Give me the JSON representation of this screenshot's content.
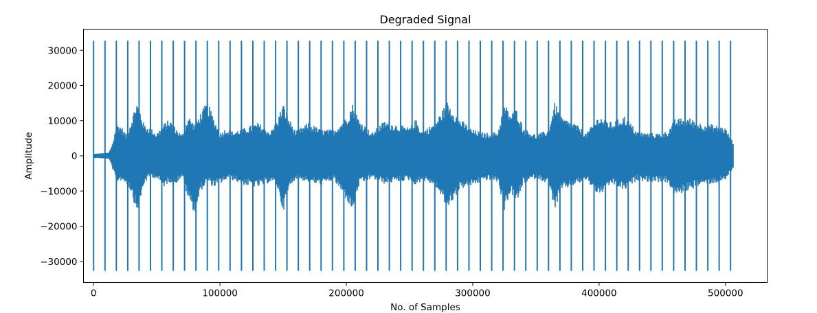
{
  "chart_data": {
    "type": "line",
    "title": "Degraded Signal",
    "xlabel": "No. of Samples",
    "ylabel": "Amplitude",
    "xlim": [
      -8000,
      533000
    ],
    "ylim": [
      -36000,
      36000
    ],
    "x_ticks": [
      0,
      100000,
      200000,
      300000,
      400000,
      500000
    ],
    "y_ticks": [
      -30000,
      -20000,
      -10000,
      0,
      10000,
      20000,
      30000
    ],
    "x_tick_labels": [
      "0",
      "100000",
      "200000",
      "300000",
      "400000",
      "500000"
    ],
    "y_tick_labels": [
      "−30000",
      "−20000",
      "−10000",
      "0",
      "10000",
      "20000",
      "30000"
    ],
    "series": [
      {
        "color": "#1f77b4",
        "sample_range": [
          0,
          506000
        ],
        "impulse_amplitude": 32700,
        "impulse_positions": [
          0,
          9000,
          18000,
          27000,
          36000,
          45000,
          54000,
          63000,
          72000,
          81000,
          90000,
          99000,
          108000,
          117000,
          126000,
          135000,
          144000,
          153000,
          162000,
          171000,
          180000,
          189000,
          198000,
          207000,
          216000,
          225000,
          234000,
          243000,
          252000,
          261000,
          270000,
          279000,
          288000,
          297000,
          306000,
          315000,
          324000,
          333000,
          342000,
          351000,
          360000,
          369000,
          378000,
          387000,
          396000,
          405000,
          414000,
          423000,
          432000,
          441000,
          450000,
          459000,
          468000,
          477000,
          486000,
          495000,
          504000
        ],
        "envelope": {
          "x": [
            0,
            12000,
            14000,
            16000,
            18000,
            22000,
            26000,
            30000,
            34000,
            36000,
            40000,
            45000,
            50000,
            55000,
            60000,
            65000,
            70000,
            75000,
            80000,
            85000,
            90000,
            95000,
            100000,
            105000,
            110000,
            120000,
            130000,
            140000,
            145000,
            150000,
            155000,
            160000,
            170000,
            180000,
            190000,
            200000,
            205000,
            210000,
            220000,
            230000,
            240000,
            250000,
            255000,
            260000,
            270000,
            280000,
            290000,
            300000,
            310000,
            320000,
            325000,
            330000,
            335000,
            340000,
            350000,
            360000,
            365000,
            370000,
            380000,
            390000,
            400000,
            410000,
            420000,
            430000,
            440000,
            450000,
            455000,
            460000,
            470000,
            480000,
            490000,
            500000,
            506000
          ],
          "upper": [
            600,
            900,
            2500,
            5000,
            9500,
            8500,
            6000,
            10500,
            15500,
            14000,
            9000,
            8000,
            6500,
            9000,
            10500,
            8000,
            6000,
            11500,
            9000,
            12500,
            15500,
            11000,
            6500,
            8000,
            7000,
            8000,
            9500,
            7000,
            10000,
            15000,
            10500,
            7000,
            9500,
            7500,
            7500,
            11000,
            15000,
            10500,
            6500,
            10000,
            9000,
            8000,
            10500,
            7000,
            9500,
            15500,
            10500,
            7500,
            6500,
            7000,
            15000,
            12000,
            13500,
            8000,
            6000,
            7500,
            15500,
            11000,
            9500,
            6500,
            11500,
            9500,
            11500,
            7000,
            6500,
            6500,
            7500,
            10500,
            11000,
            9500,
            9000,
            8000,
            4000
          ],
          "lower": [
            -600,
            -900,
            -2500,
            -5000,
            -7500,
            -7000,
            -8000,
            -10500,
            -16000,
            -14500,
            -8000,
            -6000,
            -6500,
            -9000,
            -7500,
            -8000,
            -6000,
            -12500,
            -16500,
            -10000,
            -7500,
            -9000,
            -8000,
            -7000,
            -7000,
            -8500,
            -9000,
            -7500,
            -8500,
            -16000,
            -9000,
            -6500,
            -7500,
            -8500,
            -7000,
            -12500,
            -16000,
            -8500,
            -6500,
            -8000,
            -7500,
            -7000,
            -8500,
            -7000,
            -8500,
            -15000,
            -9500,
            -8500,
            -7000,
            -7500,
            -15500,
            -10500,
            -13500,
            -8000,
            -6500,
            -8000,
            -15500,
            -10000,
            -8500,
            -7000,
            -11500,
            -8000,
            -10000,
            -7000,
            -7500,
            -7500,
            -8000,
            -11500,
            -10000,
            -8500,
            -8000,
            -7000,
            -3500
          ]
        }
      }
    ]
  }
}
